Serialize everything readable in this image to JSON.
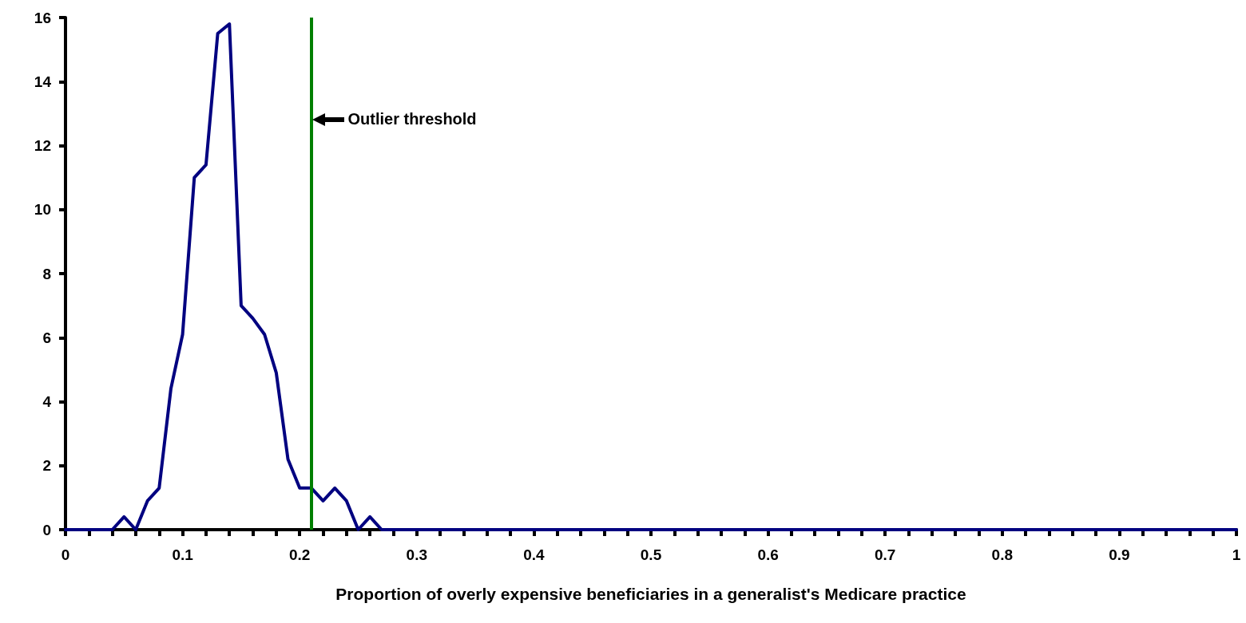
{
  "chart_data": {
    "type": "line",
    "xlabel": "Proportion of overly expensive beneficiaries in a generalist's Medicare practice",
    "x": [
      0,
      0.04,
      0.05,
      0.06,
      0.07,
      0.08,
      0.09,
      0.1,
      0.11,
      0.12,
      0.13,
      0.14,
      0.15,
      0.16,
      0.17,
      0.18,
      0.19,
      0.2,
      0.21,
      0.22,
      0.23,
      0.24,
      0.25,
      0.26,
      0.27,
      1
    ],
    "series": [
      {
        "color": "#000080",
        "values": [
          0,
          0,
          0.4,
          0,
          0.9,
          1.3,
          4.4,
          6.1,
          11.0,
          11.4,
          15.5,
          15.8,
          7.0,
          6.6,
          6.1,
          4.9,
          2.2,
          1.3,
          1.3,
          0.9,
          1.3,
          0.9,
          0,
          0.4,
          0,
          0
        ]
      }
    ],
    "xlim": [
      0,
      1
    ],
    "xticks": [
      0,
      {
        "value": 0.02,
        "label": null
      },
      {
        "value": 0.04,
        "label": null
      },
      {
        "value": 0.06,
        "label": null
      },
      {
        "value": 0.08,
        "label": null
      },
      0.1,
      {
        "value": 0.12,
        "label": null
      },
      {
        "value": 0.14,
        "label": null
      },
      {
        "value": 0.16,
        "label": null
      },
      {
        "value": 0.18,
        "label": null
      },
      0.2,
      {
        "value": 0.22,
        "label": null
      },
      {
        "value": 0.24,
        "label": null
      },
      {
        "value": 0.26,
        "label": null
      },
      {
        "value": 0.28,
        "label": null
      },
      0.3,
      {
        "value": 0.32,
        "label": null
      },
      {
        "value": 0.34,
        "label": null
      },
      {
        "value": 0.36,
        "label": null
      },
      {
        "value": 0.38,
        "label": null
      },
      0.4,
      {
        "value": 0.42,
        "label": null
      },
      {
        "value": 0.44,
        "label": null
      },
      {
        "value": 0.46,
        "label": null
      },
      {
        "value": 0.48,
        "label": null
      },
      0.5,
      {
        "value": 0.52,
        "label": null
      },
      {
        "value": 0.54,
        "label": null
      },
      {
        "value": 0.56,
        "label": null
      },
      {
        "value": 0.58,
        "label": null
      },
      0.6,
      {
        "value": 0.62,
        "label": null
      },
      {
        "value": 0.64,
        "label": null
      },
      {
        "value": 0.66,
        "label": null
      },
      {
        "value": 0.68,
        "label": null
      },
      0.7,
      {
        "value": 0.72,
        "label": null
      },
      {
        "value": 0.74,
        "label": null
      },
      {
        "value": 0.76,
        "label": null
      },
      {
        "value": 0.78,
        "label": null
      },
      0.8,
      {
        "value": 0.82,
        "label": null
      },
      {
        "value": 0.84,
        "label": null
      },
      {
        "value": 0.86,
        "label": null
      },
      {
        "value": 0.88,
        "label": null
      },
      0.9,
      {
        "value": 0.92,
        "label": null
      },
      {
        "value": 0.94,
        "label": null
      },
      {
        "value": 0.96,
        "label": null
      },
      {
        "value": 0.98,
        "label": null
      },
      1
    ],
    "ylim": [
      0,
      16
    ],
    "yticks": [
      0,
      2,
      4,
      6,
      8,
      10,
      12,
      14,
      16
    ],
    "ref_lines": [
      {
        "axis": "x",
        "value": 0.207,
        "label": "Outlier threshold",
        "color": "#008000"
      }
    ],
    "grid": false,
    "marker": "none",
    "line_style": "solid"
  }
}
